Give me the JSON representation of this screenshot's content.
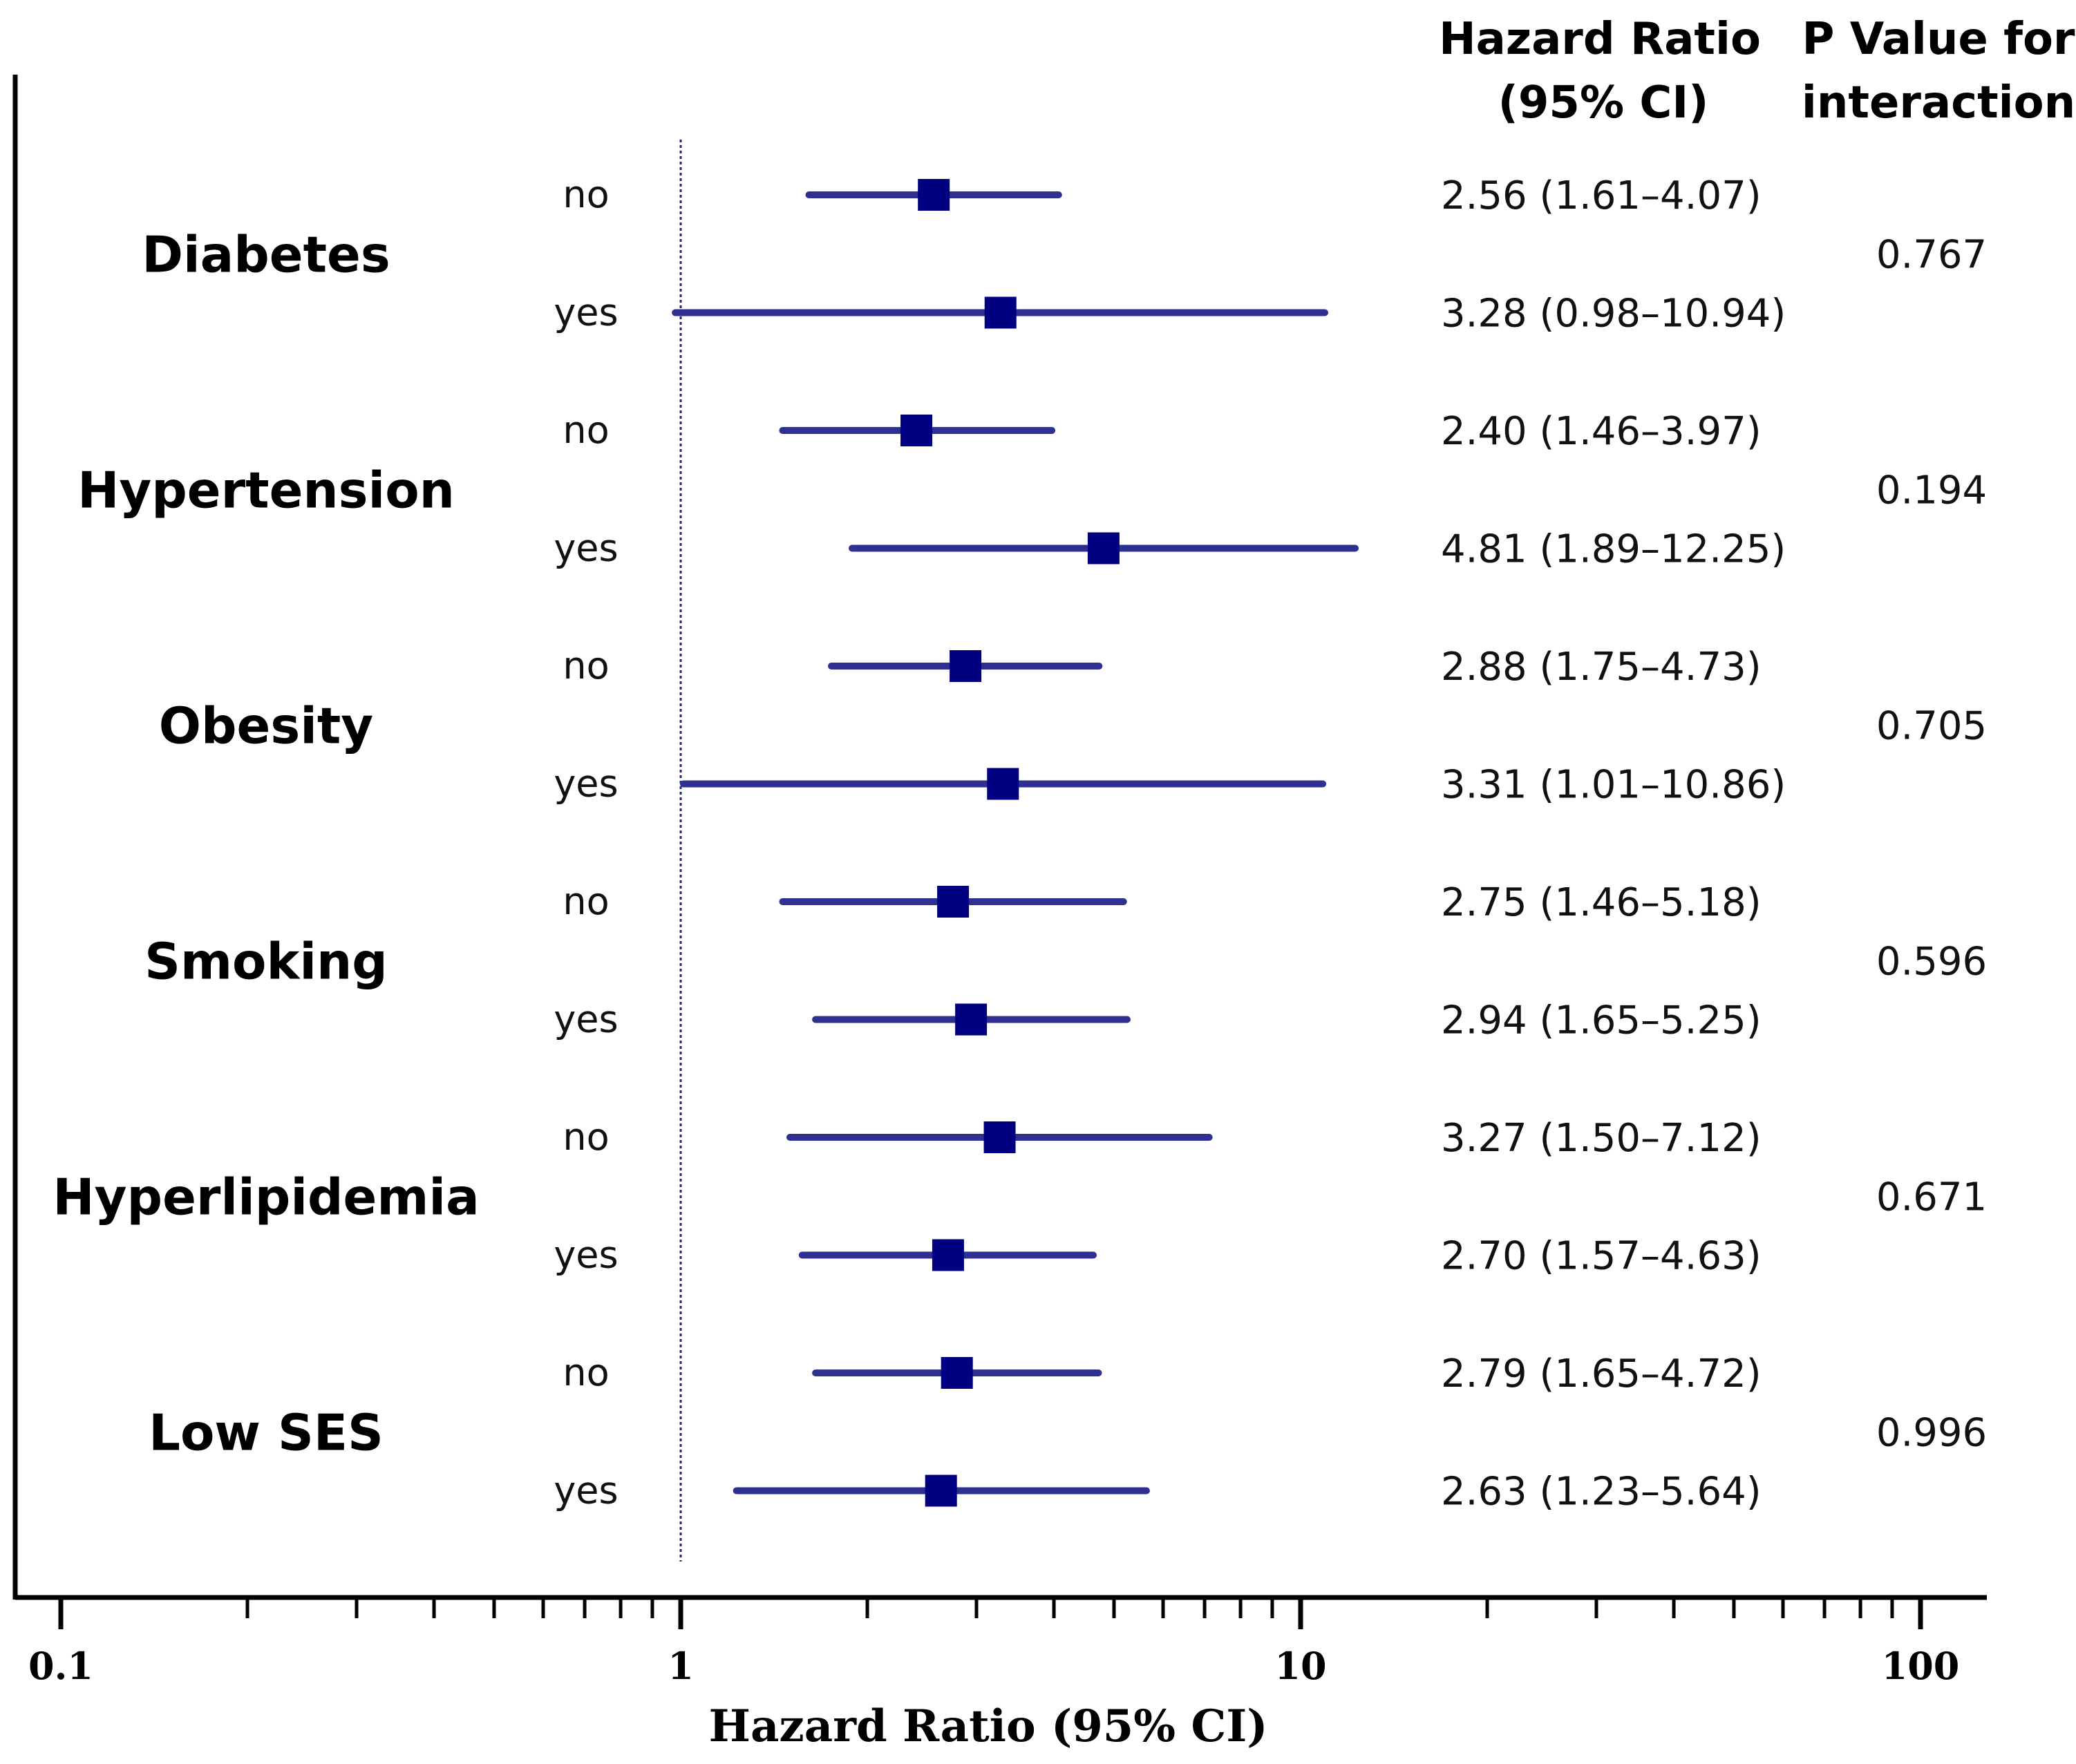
{
  "chart_data": {
    "type": "forest",
    "x_scale": "log",
    "xlim": [
      0.1,
      100
    ],
    "xticks": [
      0.1,
      1,
      10,
      100
    ],
    "xtick_labels": [
      "0.1",
      "1",
      "10",
      "100"
    ],
    "reference_line": 1,
    "xlabel": "Hazard Ratio (95% CI)",
    "columns": {
      "hr_header": [
        "Hazard Ratio",
        "(95% CI)"
      ],
      "p_header": [
        "P Value for",
        "interaction"
      ]
    },
    "colors": {
      "marker": "#000080",
      "ci_line": "#2E3192",
      "reference": "#1F2A7A"
    },
    "groups": [
      {
        "name": "Diabetes",
        "p_interaction": "0.767",
        "rows": [
          {
            "label": "no",
            "hr": 2.56,
            "lo": 1.61,
            "hi": 4.07,
            "text": "2.56 (1.61–4.07)"
          },
          {
            "label": "yes",
            "hr": 3.28,
            "lo": 0.98,
            "hi": 10.94,
            "text": "3.28 (0.98–10.94)"
          }
        ]
      },
      {
        "name": "Hypertension",
        "p_interaction": "0.194",
        "rows": [
          {
            "label": "no",
            "hr": 2.4,
            "lo": 1.46,
            "hi": 3.97,
            "text": "2.40 (1.46–3.97)"
          },
          {
            "label": "yes",
            "hr": 4.81,
            "lo": 1.89,
            "hi": 12.25,
            "text": "4.81 (1.89–12.25)"
          }
        ]
      },
      {
        "name": "Obesity",
        "p_interaction": "0.705",
        "rows": [
          {
            "label": "no",
            "hr": 2.88,
            "lo": 1.75,
            "hi": 4.73,
            "text": "2.88 (1.75–4.73)"
          },
          {
            "label": "yes",
            "hr": 3.31,
            "lo": 1.01,
            "hi": 10.86,
            "text": "3.31 (1.01–10.86)"
          }
        ]
      },
      {
        "name": "Smoking",
        "p_interaction": "0.596",
        "rows": [
          {
            "label": "no",
            "hr": 2.75,
            "lo": 1.46,
            "hi": 5.18,
            "text": "2.75 (1.46–5.18)"
          },
          {
            "label": "yes",
            "hr": 2.94,
            "lo": 1.65,
            "hi": 5.25,
            "text": "2.94 (1.65–5.25)"
          }
        ]
      },
      {
        "name": "Hyperlipidemia",
        "p_interaction": "0.671",
        "rows": [
          {
            "label": "no",
            "hr": 3.27,
            "lo": 1.5,
            "hi": 7.12,
            "text": "3.27 (1.50–7.12)"
          },
          {
            "label": "yes",
            "hr": 2.7,
            "lo": 1.57,
            "hi": 4.63,
            "text": "2.70 (1.57–4.63)"
          }
        ]
      },
      {
        "name": "Low SES",
        "p_interaction": "0.996",
        "rows": [
          {
            "label": "no",
            "hr": 2.79,
            "lo": 1.65,
            "hi": 4.72,
            "text": "2.79 (1.65–4.72)"
          },
          {
            "label": "yes",
            "hr": 2.63,
            "lo": 1.23,
            "hi": 5.64,
            "text": "2.63 (1.23–5.64)"
          }
        ]
      }
    ]
  }
}
